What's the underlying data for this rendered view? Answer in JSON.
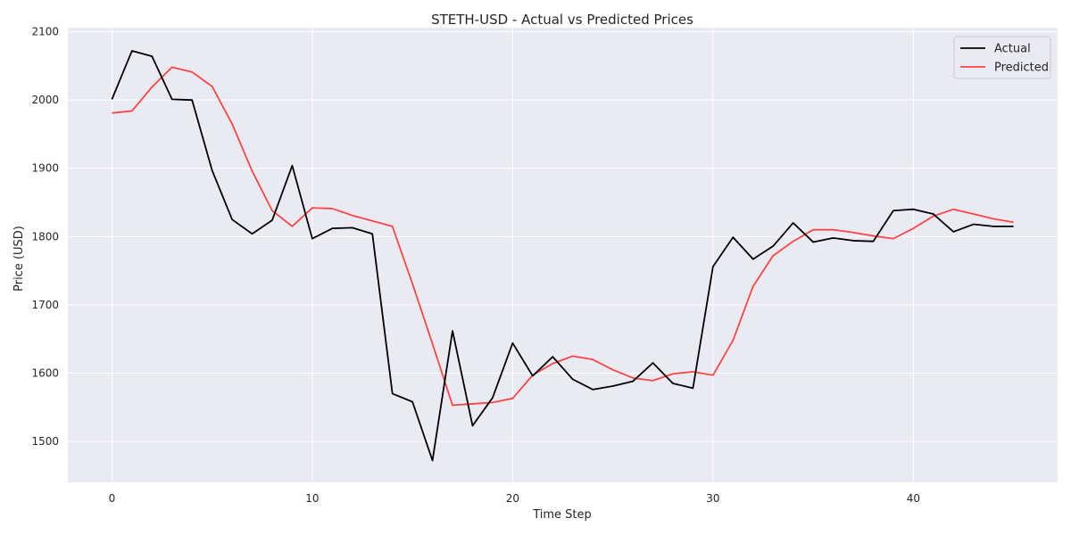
{
  "chart_data": {
    "type": "line",
    "title": "STETH-USD - Actual vs Predicted Prices",
    "xlabel": "Time Step",
    "ylabel": "Price (USD)",
    "xlim": [
      -2.2,
      47.2
    ],
    "ylim": [
      1440,
      2106
    ],
    "xticks": [
      0,
      10,
      20,
      30,
      40
    ],
    "yticks": [
      1500,
      1600,
      1700,
      1800,
      1900,
      2000,
      2100
    ],
    "grid": true,
    "legend_position": "top-right",
    "x": [
      0,
      1,
      2,
      3,
      4,
      5,
      6,
      7,
      8,
      9,
      10,
      11,
      12,
      13,
      14,
      15,
      16,
      17,
      18,
      19,
      20,
      21,
      22,
      23,
      24,
      25,
      26,
      27,
      28,
      29,
      30,
      31,
      32,
      33,
      34,
      35,
      36,
      37,
      38,
      39,
      40,
      41,
      42,
      43,
      44,
      45
    ],
    "series": [
      {
        "name": "Actual",
        "color": "#000000",
        "values": [
          2001,
          2072,
          2064,
          2001,
          2000,
          1897,
          1825,
          1804,
          1824,
          1904,
          1797,
          1812,
          1813,
          1804,
          1570,
          1558,
          1472,
          1662,
          1523,
          1564,
          1644,
          1596,
          1624,
          1591,
          1576,
          1581,
          1588,
          1615,
          1585,
          1578,
          1756,
          1799,
          1767,
          1786,
          1820,
          1792,
          1798,
          1794,
          1793,
          1838,
          1840,
          1833,
          1807,
          1818,
          1815,
          1815
        ]
      },
      {
        "name": "Predicted",
        "color": "#ff4545",
        "values": [
          1981,
          1984,
          2019,
          2048,
          2041,
          2020,
          1965,
          1896,
          1838,
          1815,
          1842,
          1841,
          1831,
          1823,
          1815,
          1731,
          1643,
          1553,
          1555,
          1557,
          1563,
          1597,
          1614,
          1625,
          1620,
          1605,
          1593,
          1589,
          1599,
          1602,
          1597,
          1648,
          1727,
          1772,
          1793,
          1810,
          1810,
          1806,
          1801,
          1797,
          1812,
          1830,
          1840,
          1833,
          1826,
          1821
        ]
      }
    ]
  }
}
